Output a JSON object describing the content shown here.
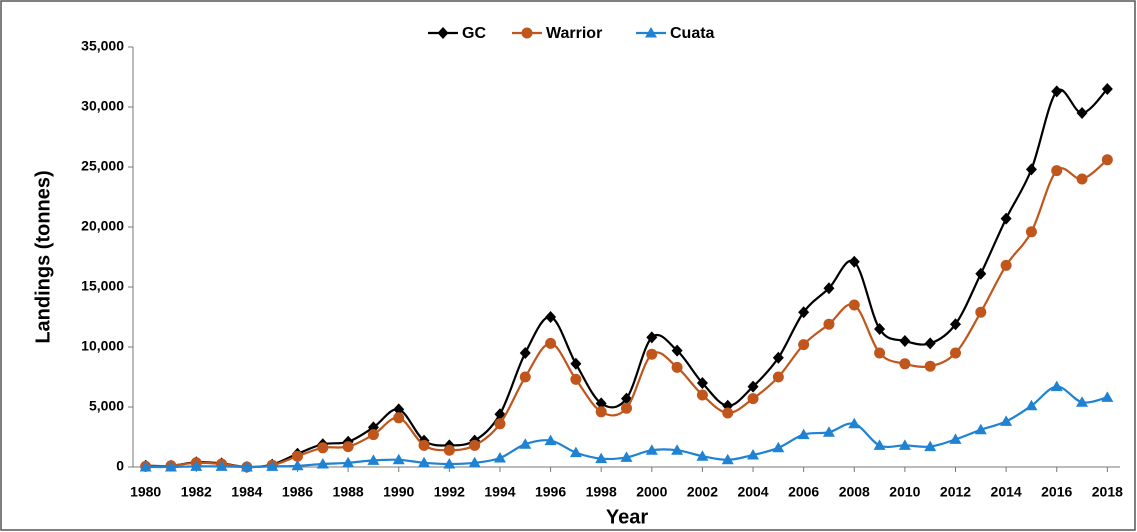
{
  "chart_data": {
    "type": "line",
    "xlabel": "Year",
    "ylabel": "Landings (tonnes)",
    "x": [
      1980,
      1981,
      1982,
      1983,
      1984,
      1985,
      1986,
      1987,
      1988,
      1989,
      1990,
      1991,
      1992,
      1993,
      1994,
      1995,
      1996,
      1997,
      1998,
      1999,
      2000,
      2001,
      2002,
      2003,
      2004,
      2005,
      2006,
      2007,
      2008,
      2009,
      2010,
      2011,
      2012,
      2013,
      2014,
      2015,
      2016,
      2017,
      2018
    ],
    "series": [
      {
        "name": "GC",
        "color": "#000000",
        "marker": "diamond",
        "values": [
          100,
          100,
          400,
          300,
          0,
          200,
          1100,
          1900,
          2100,
          3300,
          4800,
          2200,
          1800,
          2200,
          4400,
          9500,
          12500,
          8600,
          5300,
          5700,
          10800,
          9700,
          7000,
          5100,
          6700,
          9100,
          12900,
          14900,
          17100,
          11500,
          10500,
          10300,
          11900,
          16100,
          20700,
          24800,
          31300,
          29500,
          31500
        ]
      },
      {
        "name": "Warrior",
        "color": "#c0561c",
        "marker": "circle",
        "values": [
          50,
          100,
          350,
          250,
          0,
          150,
          900,
          1600,
          1700,
          2700,
          4100,
          1800,
          1400,
          1800,
          3600,
          7500,
          10300,
          7300,
          4600,
          4900,
          9400,
          8300,
          6000,
          4500,
          5700,
          7500,
          10200,
          11900,
          13500,
          9500,
          8600,
          8400,
          9500,
          12900,
          16800,
          19600,
          24700,
          24000,
          25600
        ]
      },
      {
        "name": "Cuata",
        "color": "#1f82d2",
        "marker": "triangle",
        "values": [
          0,
          0,
          50,
          50,
          0,
          50,
          100,
          250,
          350,
          550,
          600,
          350,
          250,
          350,
          750,
          1900,
          2200,
          1200,
          700,
          800,
          1400,
          1400,
          900,
          600,
          1000,
          1600,
          2700,
          2900,
          3600,
          1800,
          1800,
          1700,
          2300,
          3100,
          3800,
          5100,
          6700,
          5400,
          5800
        ]
      }
    ],
    "xlim": [
      1979.5,
      2018.5
    ],
    "ylim": [
      0,
      35000
    ],
    "xticks": [
      1980,
      1982,
      1984,
      1986,
      1988,
      1990,
      1992,
      1994,
      1996,
      1998,
      2000,
      2002,
      2004,
      2006,
      2008,
      2010,
      2012,
      2014,
      2016,
      2018
    ],
    "yticks": [
      0,
      {
        "value": 5000,
        "label": "5,000"
      },
      {
        "value": 10000,
        "label": "10,000"
      },
      {
        "value": 15000,
        "label": "15,000"
      },
      {
        "value": 20000,
        "label": "20,000"
      },
      {
        "value": 25000,
        "label": "25,000"
      },
      {
        "value": 30000,
        "label": "30,000"
      },
      {
        "value": 35000,
        "label": "35,000"
      }
    ],
    "legend": "top",
    "smooth": true
  }
}
